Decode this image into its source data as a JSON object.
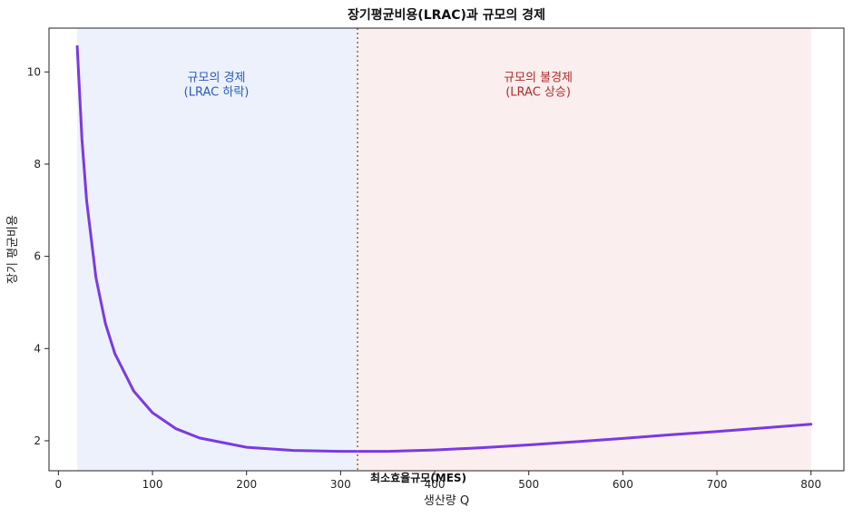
{
  "chart_data": {
    "type": "line",
    "title": "장기평균비용(LRAC)과 규모의 경제",
    "xlabel": "생산량 Q",
    "ylabel": "장기 평균비용",
    "xlim": [
      -10,
      835
    ],
    "ylim": [
      1.35,
      10.95
    ],
    "x_ticks": [
      0,
      100,
      200,
      300,
      400,
      500,
      600,
      700,
      800
    ],
    "y_ticks": [
      2,
      4,
      6,
      8,
      10
    ],
    "grid": false,
    "series": [
      {
        "name": "",
        "color": "#7b3ae0",
        "x": [
          20,
          25,
          30,
          40,
          50,
          60,
          80,
          100,
          125,
          150,
          200,
          250,
          300,
          316,
          350,
          400,
          450,
          500,
          550,
          600,
          650,
          700,
          750,
          800
        ],
        "y": [
          10.55,
          8.54,
          7.2,
          5.53,
          4.54,
          3.89,
          3.08,
          2.61,
          2.26,
          2.06,
          1.86,
          1.79,
          1.77,
          1.77,
          1.77,
          1.8,
          1.85,
          1.91,
          1.98,
          2.05,
          2.13,
          2.2,
          2.28,
          2.36
        ]
      }
    ],
    "regions": [
      {
        "x_from": 20,
        "x_to": 316,
        "color": "#dce6f9",
        "label_line1": "규모의 경제",
        "label_line2": "(LRAC 하락)",
        "label_color": "#2a5bbf",
        "label_x": 168,
        "label_y": 9.8
      },
      {
        "x_from": 316,
        "x_to": 800,
        "color": "#f7e0e0",
        "label_line1": "규모의 불경제",
        "label_line2": "(LRAC 상승)",
        "label_color": "#b02a2a",
        "label_x": 510,
        "label_y": 9.8
      }
    ],
    "mes": {
      "x": 318,
      "label": "최소효율규모(MES)"
    }
  }
}
